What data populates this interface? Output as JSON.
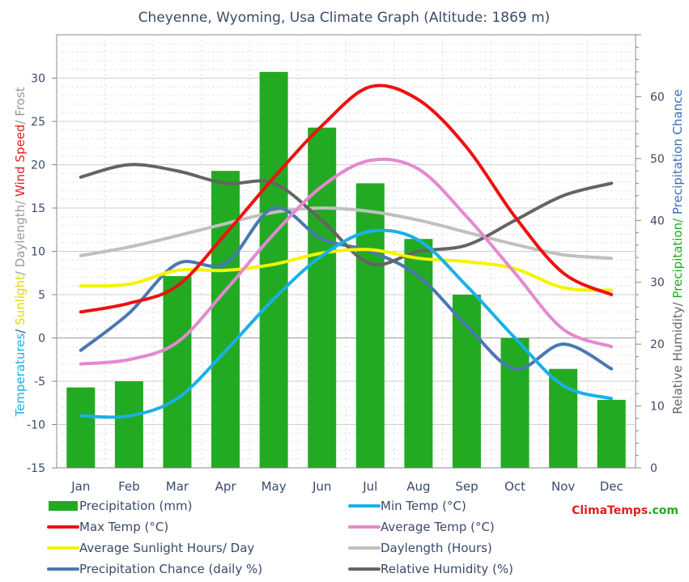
{
  "chart_data": {
    "type": "bar",
    "title": "Cheyenne, Wyoming, Usa Climate Graph (Altitude: 1869 m)",
    "categories": [
      "Jan",
      "Feb",
      "Mar",
      "Apr",
      "May",
      "Jun",
      "Jul",
      "Aug",
      "Sep",
      "Oct",
      "Nov",
      "Dec"
    ],
    "left_axis": {
      "ylim": [
        -15,
        35
      ],
      "ticks": [
        "30",
        "25",
        "20",
        "15",
        "10",
        "5",
        "0",
        "-5",
        "-10",
        "-15"
      ],
      "label_parts": [
        {
          "text": "Temperatures",
          "color": "#1ab0e8"
        },
        {
          "text": "/ ",
          "color": "#3a4a6a"
        },
        {
          "text": "Sunlight",
          "color": "#e8d800"
        },
        {
          "text": "/ Daylength/ ",
          "color": "#999999"
        },
        {
          "text": "Wind Speed",
          "color": "#e02020"
        },
        {
          "text": "/ Frost",
          "color": "#999999"
        }
      ]
    },
    "right_axis": {
      "ylim": [
        0,
        70
      ],
      "ticks": [
        "60",
        "50",
        "40",
        "30",
        "20",
        "10",
        "0"
      ],
      "label_parts": [
        {
          "text": "Relative Humidity/ ",
          "color": "#666666"
        },
        {
          "text": "Precipitation/ ",
          "color": "#22aa22"
        },
        {
          "text": "Precipitation Chance",
          "color": "#3d6fb0"
        }
      ]
    },
    "bars": {
      "name": "Precipitation (mm)",
      "color": "#22aa22",
      "axis": "right",
      "values": [
        13,
        14,
        31,
        48,
        64,
        55,
        46,
        37,
        28,
        21,
        16,
        11
      ]
    },
    "series": [
      {
        "name": "Min Temp (°C)",
        "color": "#1ab0e8",
        "axis": "left",
        "values": [
          -9,
          -9,
          -7,
          -1.5,
          4.5,
          9.5,
          12.3,
          11.3,
          6,
          0,
          -5.5,
          -7
        ]
      },
      {
        "name": "Max Temp (°C)",
        "color": "#ee1111",
        "axis": "left",
        "values": [
          3,
          4,
          6,
          12,
          18.5,
          24.5,
          29,
          27.5,
          22,
          14,
          7.5,
          5
        ]
      },
      {
        "name": "Average Temp (°C)",
        "color": "#e489d0",
        "axis": "left",
        "values": [
          -3,
          -2.5,
          -0.5,
          5.5,
          12,
          17.5,
          20.5,
          19.5,
          14,
          7.5,
          1,
          -1
        ]
      },
      {
        "name": "Average Sunlight Hours/ Day",
        "color": "#f4f400",
        "axis": "left",
        "values": [
          6,
          6.2,
          7.8,
          7.8,
          8.5,
          9.8,
          10.2,
          9.2,
          8.8,
          8,
          5.8,
          5.5
        ]
      },
      {
        "name": "Daylength (Hours)",
        "color": "#c0c0c0",
        "axis": "left",
        "values": [
          9.5,
          10.5,
          11.8,
          13.2,
          14.5,
          15,
          14.6,
          13.6,
          12.2,
          10.8,
          9.6,
          9.2
        ]
      },
      {
        "name": "Precipitation Chance (daily %)",
        "color": "#4a78b0",
        "axis": "right",
        "values": [
          19,
          25,
          33,
          33,
          42,
          37,
          35,
          31,
          23,
          16,
          20,
          16
        ]
      },
      {
        "name": "Relative Humidity (%)",
        "color": "#646464",
        "axis": "right",
        "values": [
          47,
          49,
          48,
          46,
          46,
          40,
          33,
          35,
          36,
          40,
          44,
          46
        ]
      }
    ],
    "grid": true,
    "legend_position": "bottom"
  },
  "brand": {
    "text_a": "Clima",
    "text_b": "Temps",
    "text_c": ".com",
    "color_a": "#e02020",
    "color_b": "#e02020",
    "color_c": "#22aa22"
  }
}
